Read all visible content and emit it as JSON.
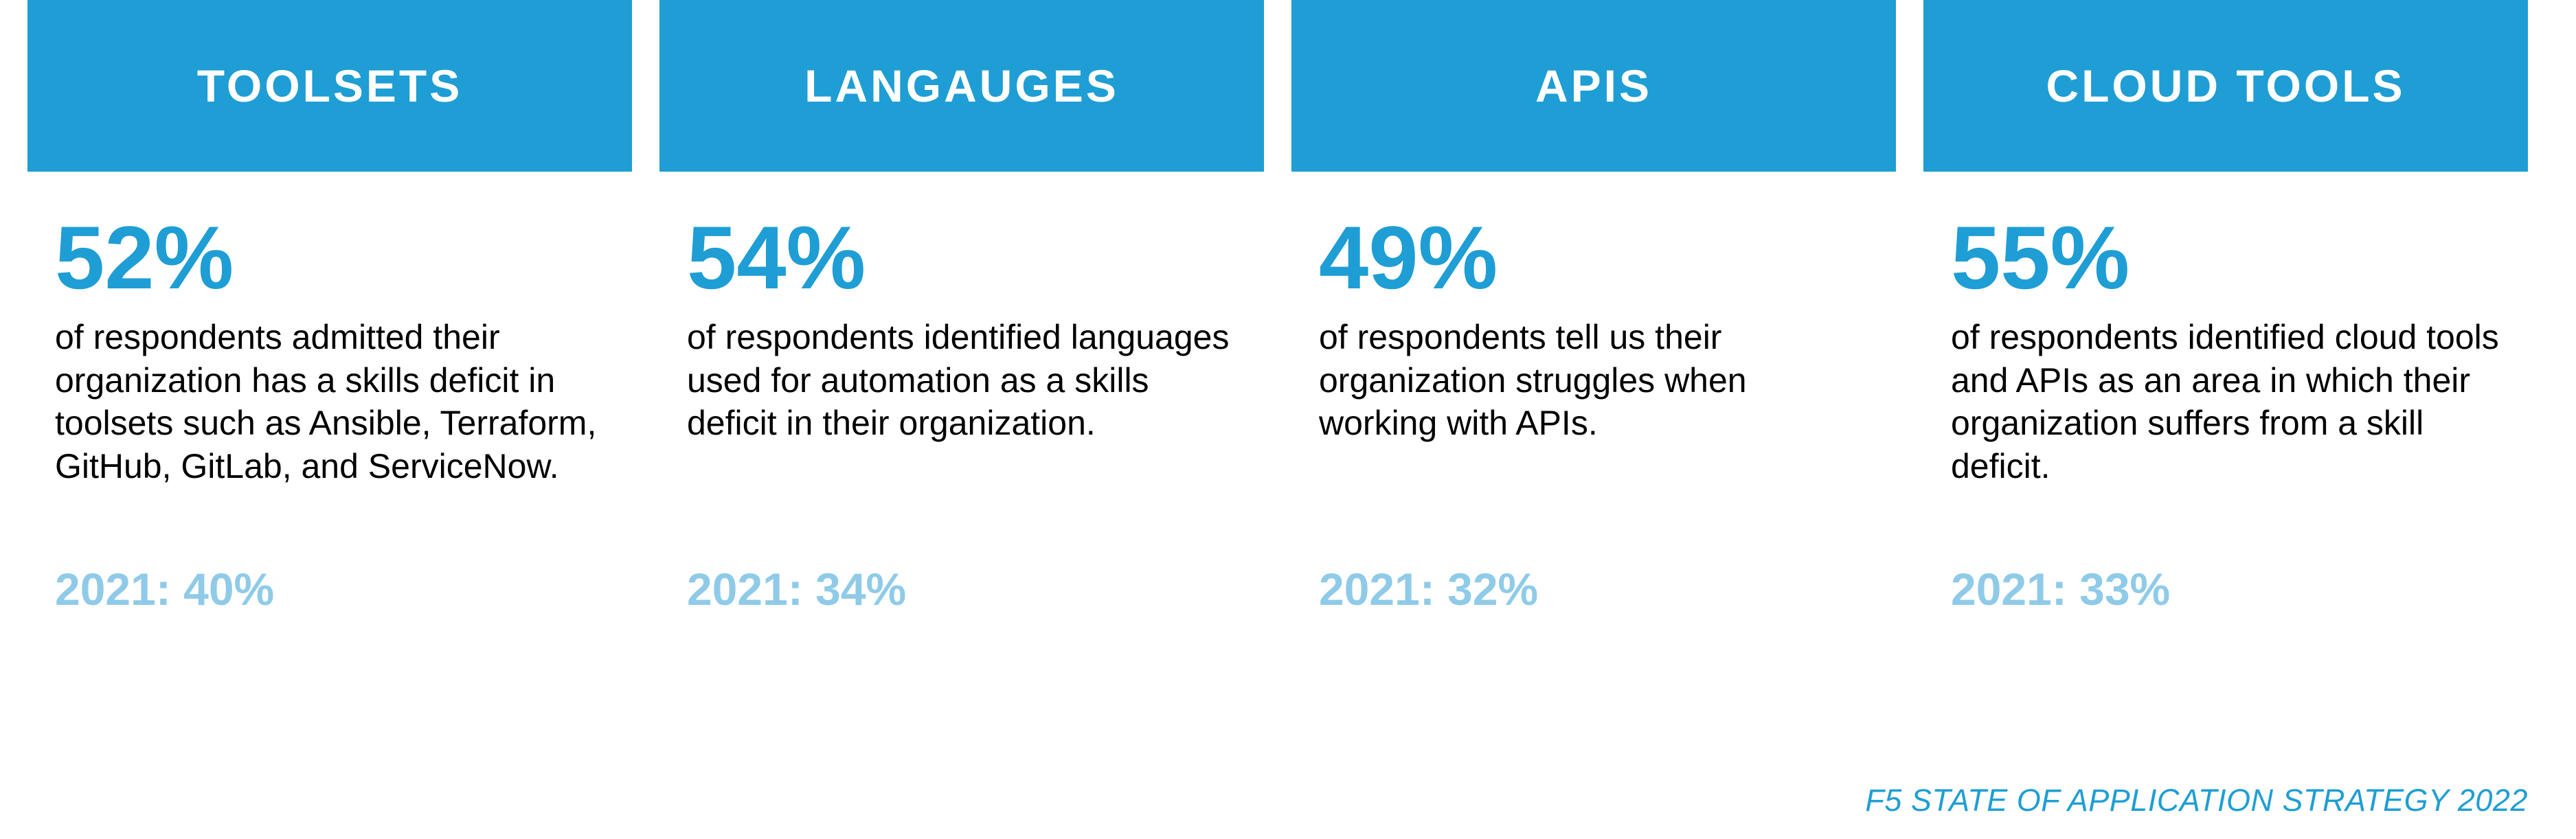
{
  "colors": {
    "header_bg": "#1e9ed4",
    "header_text": "#ffffff",
    "stat": "#1e9ed4",
    "desc": "#000000",
    "prior": "#8fcbe8",
    "source": "#1e9ed4",
    "page_bg": "#ffffff"
  },
  "typography": {
    "header_fontsize": 66,
    "stat_fontsize": 130,
    "desc_fontsize": 50,
    "prior_fontsize": 66,
    "source_fontsize": 45
  },
  "cards": [
    {
      "title": "TOOLSETS",
      "stat": "52%",
      "desc": "of respondents admitted their organization has a skills deficit in toolsets such as Ansible, Terraform, GitHub, GitLab, and ServiceNow.",
      "prior": "2021: 40%"
    },
    {
      "title": "LANGAUGES",
      "stat": "54%",
      "desc": "of respondents identified languages used for automation as a skills deficit in their organization.",
      "prior": "2021: 34%"
    },
    {
      "title": "APIS",
      "stat": "49%",
      "desc": "of respondents tell us their organization struggles when working with APIs.",
      "prior": "2021: 32%"
    },
    {
      "title": "CLOUD TOOLS",
      "stat": "55%",
      "desc": "of respondents identified cloud tools and APIs as an area in which their organization suffers from a skill deficit.",
      "prior": "2021: 33%"
    }
  ],
  "source_line": "F5 STATE OF APPLICATION STRATEGY 2022"
}
